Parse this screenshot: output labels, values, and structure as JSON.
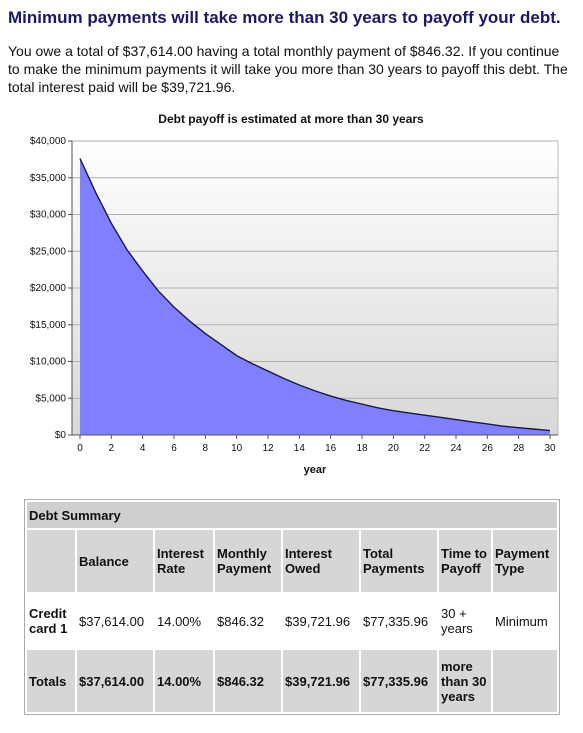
{
  "headline": "Minimum payments will take more than 30 years to payoff your debt.",
  "summary": "You owe a total of $37,614.00 having a total monthly payment of $846.32. If you continue to make the minimum payments it will take you more than 30 years to payoff this debt. The total interest paid will be $39,721.96.",
  "chart_data": {
    "type": "area",
    "title": "Debt payoff is estimated at more than 30 years",
    "xlabel": "year",
    "ylabel": "",
    "x": [
      0,
      1,
      2,
      3,
      4,
      5,
      6,
      7,
      8,
      9,
      10,
      11,
      12,
      13,
      14,
      15,
      16,
      17,
      18,
      19,
      20,
      21,
      22,
      23,
      24,
      25,
      26,
      27,
      28,
      29,
      30
    ],
    "values": [
      37614,
      33000,
      28800,
      25200,
      22300,
      19600,
      17400,
      15500,
      13800,
      12300,
      10800,
      9700,
      8700,
      7700,
      6800,
      6000,
      5300,
      4700,
      4200,
      3700,
      3300,
      3000,
      2700,
      2400,
      2100,
      1800,
      1500,
      1200,
      1000,
      800,
      600
    ],
    "xlim": [
      0,
      30
    ],
    "ylim": [
      0,
      40000
    ],
    "xticks": [
      "0",
      "2",
      "4",
      "6",
      "8",
      "10",
      "12",
      "14",
      "16",
      "18",
      "20",
      "22",
      "24",
      "26",
      "28",
      "30"
    ],
    "yticks": [
      "$0",
      "$5,000",
      "$10,000",
      "$15,000",
      "$20,000",
      "$25,000",
      "$30,000",
      "$35,000",
      "$40,000"
    ],
    "fill_color": "#8080ff",
    "line_color": "#1a1a3a",
    "grid": true
  },
  "table": {
    "caption": "Debt Summary",
    "headers": [
      "",
      "Balance",
      "Interest Rate",
      "Monthly Payment",
      "Interest Owed",
      "Total Payments",
      "Time to Payoff",
      "Payment Type"
    ],
    "rows": [
      [
        "Credit card 1",
        "$37,614.00",
        "14.00%",
        "$846.32",
        "$39,721.96",
        "$77,335.96",
        "30 + years",
        "Minimum"
      ]
    ],
    "totals": [
      "Totals",
      "$37,614.00",
      "14.00%",
      "$846.32",
      "$39,721.96",
      "$77,335.96",
      "more than 30 years",
      ""
    ]
  }
}
